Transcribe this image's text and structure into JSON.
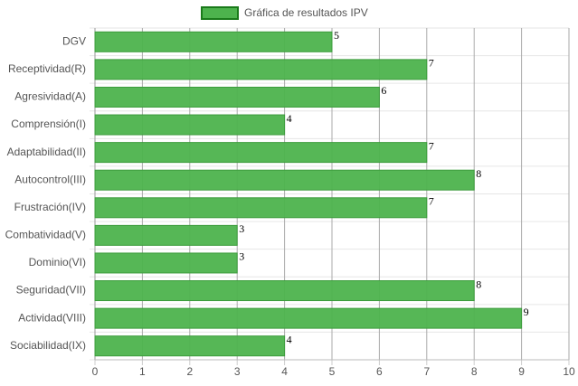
{
  "chart_data": {
    "type": "bar",
    "orientation": "horizontal",
    "categories": [
      "DGV",
      "Receptividad(R)",
      "Agresividad(A)",
      "Comprensión(I)",
      "Adaptabilidad(II)",
      "Autocontrol(III)",
      "Frustración(IV)",
      "Combatividad(V)",
      "Dominio(VI)",
      "Seguridad(VII)",
      "Actividad(VIII)",
      "Sociabilidad(IX)"
    ],
    "series": [
      {
        "name": "Gráfica de resultados IPV",
        "color": "#4db34d",
        "values": [
          5,
          7,
          6,
          4,
          7,
          8,
          7,
          3,
          3,
          8,
          9,
          4
        ]
      }
    ],
    "xlim": [
      0,
      10
    ],
    "xticks": [
      0,
      1,
      2,
      3,
      4,
      5,
      6,
      7,
      8,
      9,
      10
    ],
    "grid": true,
    "legend": "top"
  }
}
